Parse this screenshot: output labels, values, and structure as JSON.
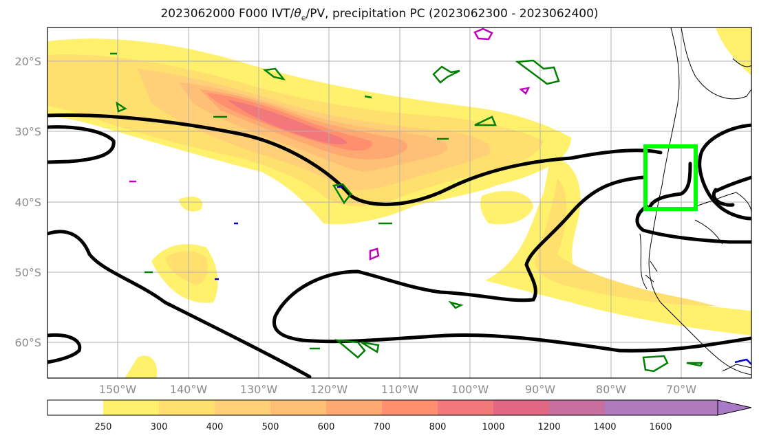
{
  "title_main": "2023062000 F000 IVT/",
  "title_theta": "θ",
  "title_sub": "e",
  "title_rest": "/PV, precipitation PC (2023062300 - 2023062400)",
  "lat_labels": [
    "20°S",
    "30°S",
    "40°S",
    "50°S",
    "60°S"
  ],
  "lon_labels": [
    "150°W",
    "140°W",
    "130°W",
    "120°W",
    "110°W",
    "100°W",
    "90°W",
    "80°W",
    "70°W"
  ],
  "colorbar": {
    "levels": [
      "250",
      "300",
      "400",
      "500",
      "600",
      "700",
      "800",
      "1000",
      "1200",
      "1400",
      "1600"
    ],
    "colors": [
      "#ffffff",
      "#fff16b",
      "#ffe06e",
      "#ffd077",
      "#ffbf77",
      "#ffa972",
      "#ff8f6f",
      "#f27879",
      "#e06885",
      "#c76f9f",
      "#b07abf",
      "#a87ac8"
    ],
    "extend": "max"
  },
  "map": {
    "lat_range": [
      "65°S",
      "15°S"
    ],
    "lon_range": [
      "160°W",
      "60°W"
    ],
    "highlight_box_color": "#00ff00",
    "contour_color": "#000000",
    "pv_colors": [
      "#008000",
      "#c000c0",
      "#0000d0"
    ]
  }
}
